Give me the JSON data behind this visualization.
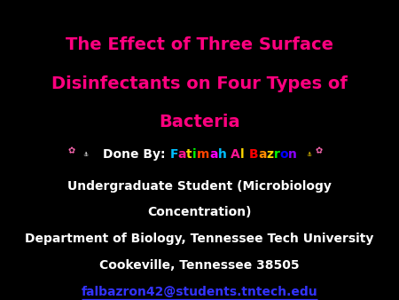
{
  "background_color": "#000000",
  "title_lines": [
    "The Effect of Three Surface",
    "Disinfectants on Four Types of",
    "Bacteria"
  ],
  "title_color": "#FF007F",
  "title_fontsize": 14,
  "title_bold": true,
  "done_by_prefix": "Done By: ",
  "done_by_color": "#FFFFFF",
  "name_text": "Fatimah Al Bazron",
  "name_char_colors": [
    "#00BFFF",
    "#FF1493",
    "#FFD700",
    "#00FF00",
    "#FF4500",
    "#FF00FF",
    "#00BFFF",
    "#FFFFFF",
    "#FF1493",
    "#FFD700",
    "#FFFFFF",
    "#FF0000",
    "#FF8C00",
    "#FFD700",
    "#00FF00",
    "#0000FF",
    "#8B00FF"
  ],
  "line_undergrad": "Undergraduate Student (Microbiology",
  "line_conc": "Concentration)",
  "line_dept": "Department of Biology, Tennessee Tech University",
  "line_city": "Cookeville, Tennessee 38505",
  "line_email": "falbazron42@students.tntech.edu",
  "body_color": "#FFFFFF",
  "email_color": "#3333FF",
  "body_fontsize": 10,
  "email_fontsize": 10,
  "figwidth": 4.5,
  "figheight": 3.38,
  "dpi": 100
}
